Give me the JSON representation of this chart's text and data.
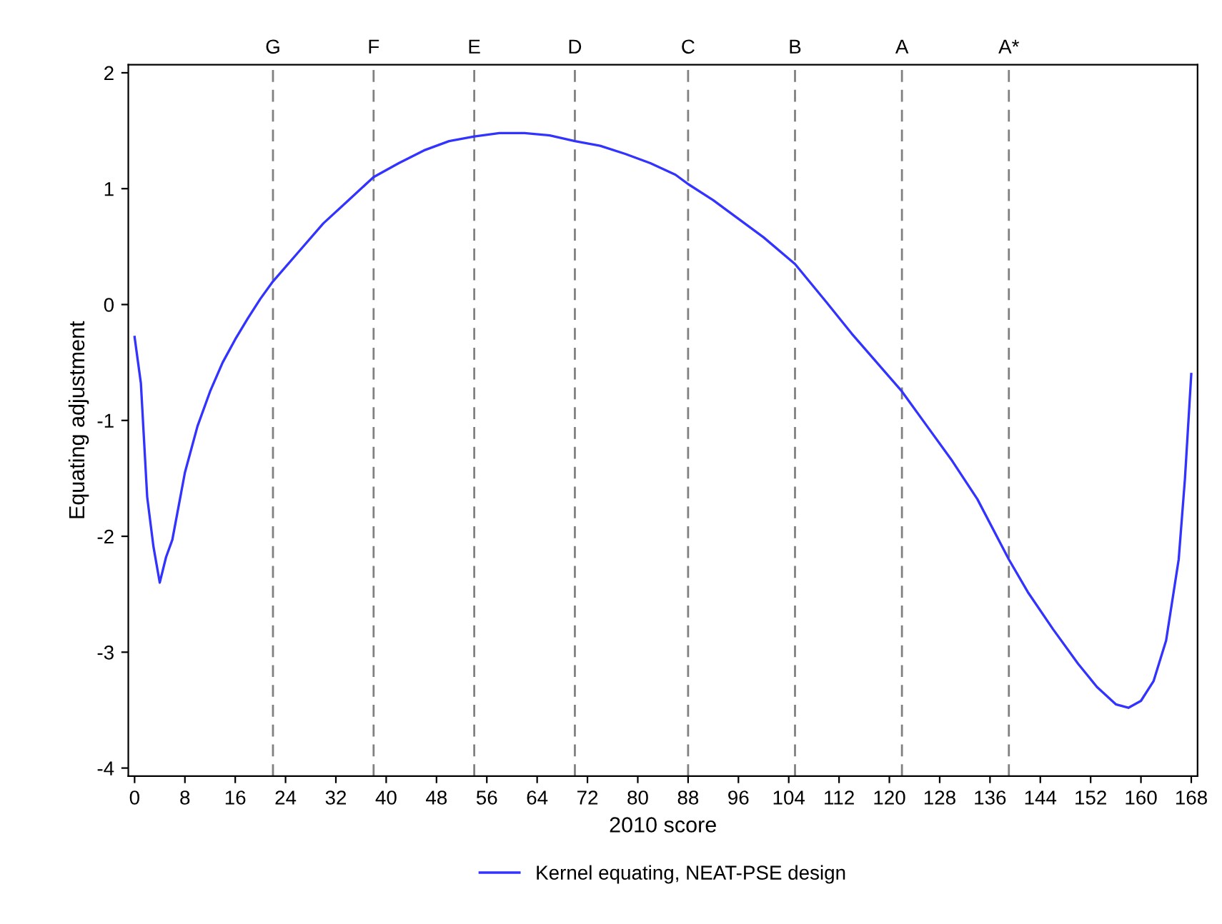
{
  "chart_data": {
    "type": "line",
    "xlabel": "2010 score",
    "ylabel": "Equating adjustment",
    "xlim": [
      -1,
      169
    ],
    "ylim": [
      -4.07,
      2.07
    ],
    "xticks": [
      0,
      8,
      16,
      24,
      32,
      40,
      48,
      56,
      64,
      72,
      80,
      88,
      96,
      104,
      112,
      120,
      128,
      136,
      144,
      152,
      160,
      168
    ],
    "yticks": [
      -4,
      -3,
      -2,
      -1,
      0,
      1,
      2
    ],
    "grid": false,
    "legend": "bottom",
    "marker": "none",
    "line_style": "solid",
    "ref_lines": [
      {
        "axis": "x",
        "value": 22,
        "label": "G",
        "color": "#808080",
        "line_style": "dashed"
      },
      {
        "axis": "x",
        "value": 38,
        "label": "F",
        "color": "#808080",
        "line_style": "dashed"
      },
      {
        "axis": "x",
        "value": 54,
        "label": "E",
        "color": "#808080",
        "line_style": "dashed"
      },
      {
        "axis": "x",
        "value": 70,
        "label": "D",
        "color": "#808080",
        "line_style": "dashed"
      },
      {
        "axis": "x",
        "value": 88,
        "label": "C",
        "color": "#808080",
        "line_style": "dashed"
      },
      {
        "axis": "x",
        "value": 105,
        "label": "B",
        "color": "#808080",
        "line_style": "dashed"
      },
      {
        "axis": "x",
        "value": 122,
        "label": "A",
        "color": "#808080",
        "line_style": "dashed"
      },
      {
        "axis": "x",
        "value": 139,
        "label": "A*",
        "color": "#808080",
        "line_style": "dashed"
      }
    ],
    "series": [
      {
        "name": "Kernel equating, NEAT-PSE design",
        "color": "#3333ff",
        "x": [
          0,
          1,
          2,
          3,
          4,
          5,
          6,
          8,
          10,
          12,
          14,
          16,
          18,
          20,
          22,
          26,
          30,
          34,
          38,
          42,
          46,
          50,
          54,
          58,
          62,
          66,
          70,
          74,
          78,
          82,
          86,
          88,
          92,
          96,
          100,
          105,
          110,
          114,
          118,
          122,
          126,
          130,
          134,
          139,
          142,
          146,
          150,
          153,
          156,
          158,
          160,
          162,
          164,
          166,
          167,
          168
        ],
        "values": [
          -0.28,
          -0.68,
          -1.66,
          -2.09,
          -2.4,
          -2.18,
          -2.03,
          -1.45,
          -1.05,
          -0.75,
          -0.5,
          -0.3,
          -0.12,
          0.05,
          0.2,
          0.45,
          0.7,
          0.9,
          1.1,
          1.22,
          1.33,
          1.41,
          1.45,
          1.48,
          1.48,
          1.46,
          1.41,
          1.37,
          1.3,
          1.22,
          1.12,
          1.04,
          0.9,
          0.74,
          0.58,
          0.35,
          0.02,
          -0.25,
          -0.5,
          -0.75,
          -1.05,
          -1.35,
          -1.68,
          -2.2,
          -2.48,
          -2.8,
          -3.1,
          -3.3,
          -3.45,
          -3.48,
          -3.42,
          -3.25,
          -2.9,
          -2.2,
          -1.5,
          -0.6
        ]
      }
    ]
  }
}
